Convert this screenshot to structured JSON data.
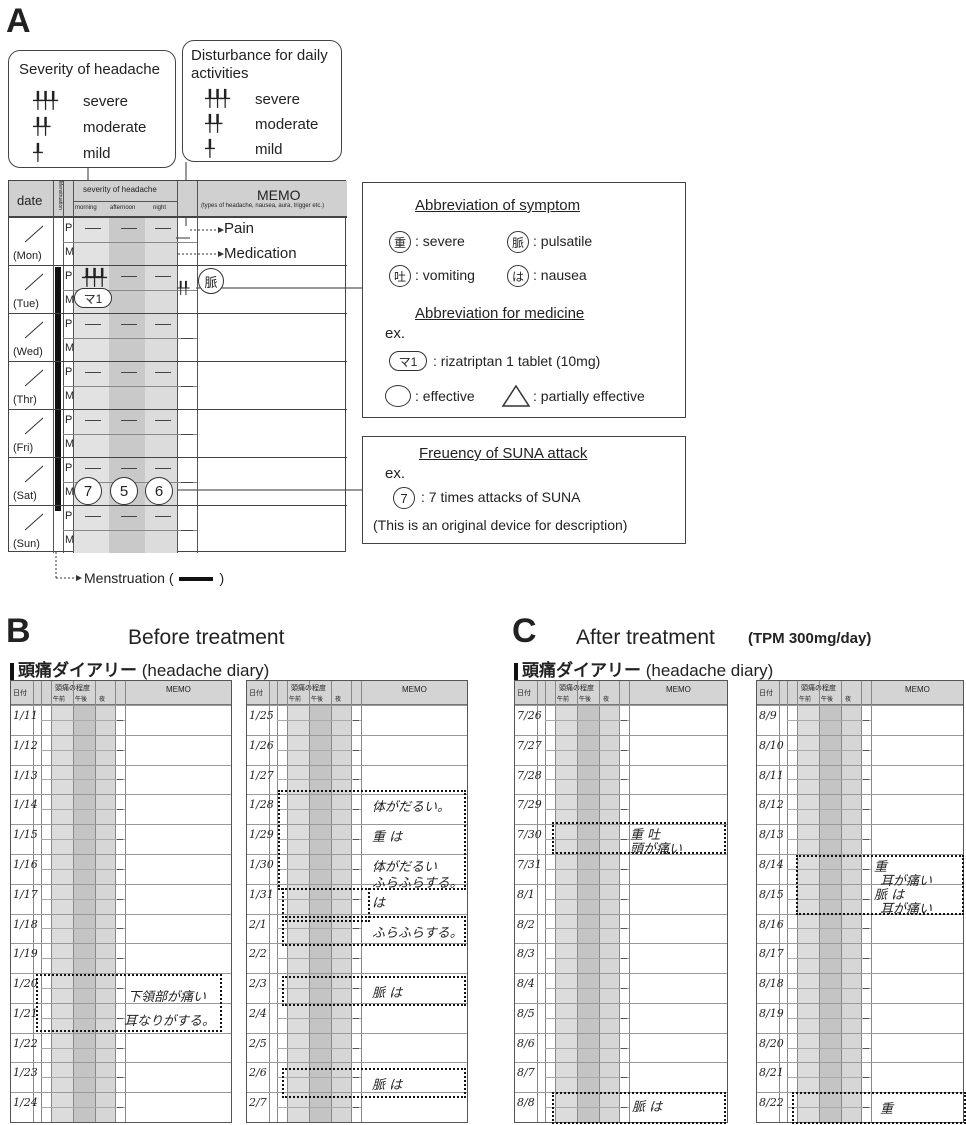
{
  "panels": {
    "a": "A",
    "b": "B",
    "c": "C"
  },
  "severity_legend": {
    "title": "Severity of headache",
    "items": [
      {
        "symbol": "╀╀╀",
        "label": "severe"
      },
      {
        "symbol": "╀╀",
        "label": "moderate"
      },
      {
        "symbol": "╀",
        "label": "mild"
      }
    ]
  },
  "disturbance_legend": {
    "title_line1": "Disturbance for daily",
    "title_line2": "activities",
    "items": [
      {
        "symbol": "╀╀╀",
        "label": "severe"
      },
      {
        "symbol": "╀╀",
        "label": "moderate"
      },
      {
        "symbol": "╀",
        "label": "mild"
      }
    ]
  },
  "diary_table": {
    "date_header": "date",
    "menstruation_header": "Menstruation",
    "severity_header": "severity of headache",
    "periods": [
      "morning",
      "afternoon",
      "night"
    ],
    "memo_header": "MEMO",
    "memo_sub": "(types of headache, nausea, aura, trigger etc.)",
    "days": [
      "(Mon)",
      "(Tue)",
      "(Wed)",
      "(Thr)",
      "(Fri)",
      "(Sat)",
      "(Sun)"
    ],
    "row_p": "P",
    "row_m": "M",
    "pain_label": "Pain",
    "medication_label": "Medication",
    "tue_morning_ticks": "╀╀╀",
    "tue_med": "マ1",
    "tue_disturb": "╀╀",
    "tue_memo": "脈",
    "sat_counts": [
      "7",
      "5",
      "6"
    ],
    "menstruation_caption": "Menstruation (",
    "menstruation_caption_end": ")"
  },
  "symptom_box": {
    "title": "Abbreviation of symptom",
    "items": [
      {
        "glyph": "重",
        "label": ": severe"
      },
      {
        "glyph": "脈",
        "label": ": pulsatile"
      },
      {
        "glyph": "吐",
        "label": ": vomiting"
      },
      {
        "glyph": "は",
        "label": ": nausea"
      }
    ],
    "medicine_title": "Abbreviation for medicine",
    "ex": "ex.",
    "med_glyph": "マ1",
    "med_label": ": rizatriptan 1 tablet (10mg)",
    "effective": ": effective",
    "partial": ": partially effective"
  },
  "suna_box": {
    "title": "Freuency of SUNA attack",
    "ex": "ex.",
    "glyph": "7",
    "label": ": 7 times attacks of SUNA",
    "note": "(This is an original device for description)"
  },
  "panel_b": {
    "title": "Before treatment",
    "diary_jp": "頭痛ダイアリー",
    "diary_en": "(headache diary)",
    "left_dates": [
      "1/11",
      "1/12",
      "1/13",
      "1/14",
      "1/15",
      "1/16",
      "1/17",
      "1/18",
      "1/19",
      "1/20",
      "1/21",
      "1/22",
      "1/23",
      "1/24"
    ],
    "right_dates": [
      "1/25",
      "1/26",
      "1/27",
      "1/28",
      "1/29",
      "1/30",
      "1/31",
      "2/1",
      "2/2",
      "2/3",
      "2/4",
      "2/5",
      "2/6",
      "2/7"
    ],
    "left_notes": [
      "下領部が痛い",
      "耳なりがする。"
    ],
    "right_notes": [
      "体がだるい。",
      "重 は",
      "体がだるい",
      "ふらふらする。",
      "は",
      "ふらふらする。",
      "脈 は",
      "脈 は"
    ]
  },
  "panel_c": {
    "title": "After treatment",
    "dose": "(TPM 300mg/day)",
    "diary_jp": "頭痛ダイアリー",
    "diary_en": "(headache diary)",
    "left_dates": [
      "7/26",
      "7/27",
      "7/28",
      "7/29",
      "7/30",
      "7/31",
      "8/1",
      "8/2",
      "8/3",
      "8/4",
      "8/5",
      "8/6",
      "8/7",
      "8/8"
    ],
    "right_dates": [
      "8/9",
      "8/10",
      "8/11",
      "8/12",
      "8/13",
      "8/14",
      "8/15",
      "8/16",
      "8/17",
      "8/18",
      "8/19",
      "8/20",
      "8/21",
      "8/22"
    ],
    "left_notes": [
      "重 吐",
      "頭が痛い",
      "脈 は"
    ],
    "right_notes": [
      "重",
      "耳が痛い",
      "脈 は",
      "耳が痛い",
      "重"
    ]
  },
  "diary_headers": {
    "date": "日付",
    "severity": "頭痛の程度",
    "morning": "午前",
    "afternoon": "午後",
    "night": "夜",
    "memo": "MEMO"
  }
}
